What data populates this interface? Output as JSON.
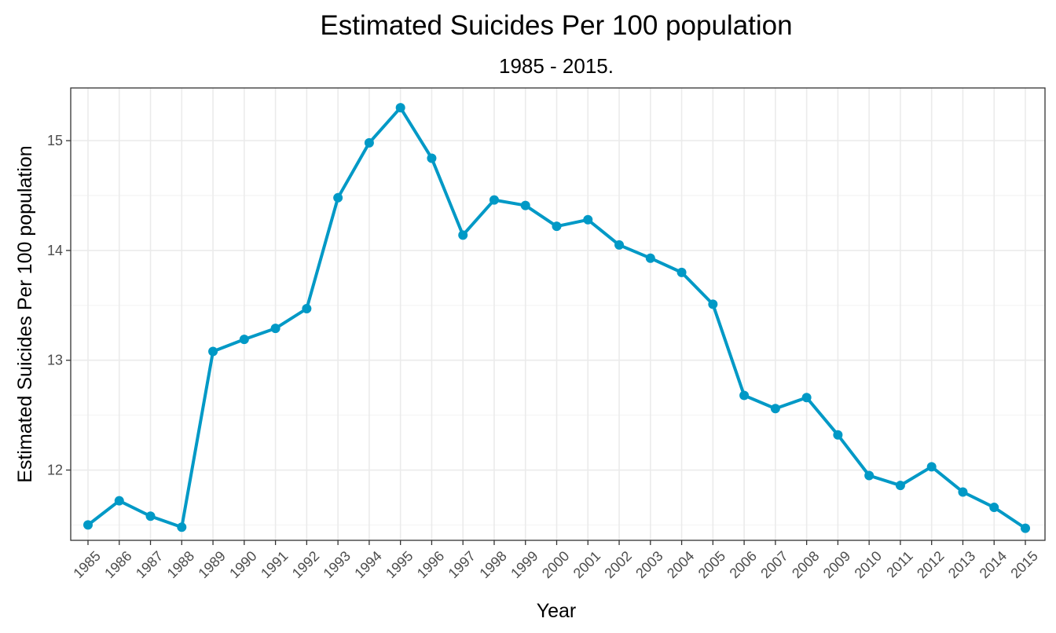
{
  "chart_data": {
    "type": "line",
    "title": "Estimated Suicides Per 100 population",
    "subtitle": "1985 - 2015.",
    "xlabel": "Year",
    "ylabel": "Estimated Suicides Per 100 population",
    "x": [
      "1985",
      "1986",
      "1987",
      "1988",
      "1989",
      "1990",
      "1991",
      "1992",
      "1993",
      "1994",
      "1995",
      "1996",
      "1997",
      "1998",
      "1999",
      "2000",
      "2001",
      "2002",
      "2003",
      "2004",
      "2005",
      "2006",
      "2007",
      "2008",
      "2009",
      "2010",
      "2011",
      "2012",
      "2013",
      "2014",
      "2015"
    ],
    "series": [
      {
        "values": [
          11.5,
          11.72,
          11.58,
          11.48,
          13.08,
          13.19,
          13.29,
          13.47,
          14.48,
          14.98,
          15.3,
          14.84,
          14.14,
          14.46,
          14.41,
          14.22,
          14.28,
          14.05,
          13.93,
          13.8,
          13.51,
          12.68,
          12.56,
          12.66,
          12.32,
          11.95,
          11.86,
          12.03,
          11.8,
          11.66,
          11.47
        ],
        "color": "#0099c6"
      }
    ],
    "ylim": [
      11.36,
      15.48
    ],
    "yticks": [
      12,
      13,
      14,
      15
    ],
    "grid": true,
    "legend": "none"
  }
}
